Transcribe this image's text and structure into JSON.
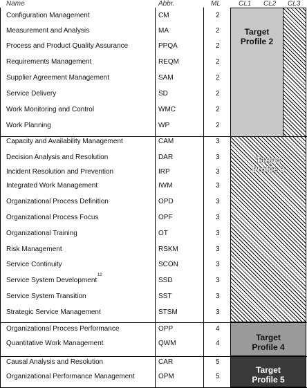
{
  "headers": {
    "name": "Name",
    "abbr": "Abbr.",
    "ml": "ML",
    "cl1": "CL1",
    "cl2": "CL2",
    "cl3": "CL3"
  },
  "rows": [
    {
      "name": "Configuration Management",
      "abbr": "CM",
      "ml": "2"
    },
    {
      "name": "Measurement and Analysis",
      "abbr": "MA",
      "ml": "2"
    },
    {
      "name": "Process and Product Quality Assurance",
      "abbr": "PPQA",
      "ml": "2"
    },
    {
      "name": "Requirements Management",
      "abbr": "REQM",
      "ml": "2"
    },
    {
      "name": "Supplier Agreement Management",
      "abbr": "SAM",
      "ml": "2"
    },
    {
      "name": "Service Delivery",
      "abbr": "SD",
      "ml": "2"
    },
    {
      "name": "Work Monitoring and Control",
      "abbr": "WMC",
      "ml": "2"
    },
    {
      "name": "Work Planning",
      "abbr": "WP",
      "ml": "2"
    },
    {
      "name": "Capacity and Availability Management",
      "abbr": "CAM",
      "ml": "3"
    },
    {
      "name": "Decision Analysis and Resolution",
      "abbr": "DAR",
      "ml": "3"
    },
    {
      "name": "Incident Resolution and Prevention",
      "abbr": "IRP",
      "ml": "3"
    },
    {
      "name": "Integrated Work Management",
      "abbr": "IWM",
      "ml": "3"
    },
    {
      "name": "Organizational Process Definition",
      "abbr": "OPD",
      "ml": "3"
    },
    {
      "name": "Organizational Process Focus",
      "abbr": "OPF",
      "ml": "3"
    },
    {
      "name": "Organizational Training",
      "abbr": "OT",
      "ml": "3"
    },
    {
      "name": "Risk Management",
      "abbr": "RSKM",
      "ml": "3"
    },
    {
      "name": "Service Continuity",
      "abbr": "SCON",
      "ml": "3"
    },
    {
      "name": "Service System Development",
      "sup": "12",
      "abbr": "SSD",
      "ml": "3"
    },
    {
      "name": "Service System Transition",
      "abbr": "SST",
      "ml": "3"
    },
    {
      "name": "Strategic Service Management",
      "abbr": "STSM",
      "ml": "3"
    },
    {
      "name": "Organizational Process Performance",
      "abbr": "OPP",
      "ml": "4"
    },
    {
      "name": "Quantitative Work Management",
      "abbr": "QWM",
      "ml": "4"
    },
    {
      "name": "Causal Analysis and Resolution",
      "abbr": "CAR",
      "ml": "5"
    },
    {
      "name": "Organizational Performance Management",
      "abbr": "OPM",
      "ml": "5"
    }
  ],
  "profiles": {
    "p2": [
      "Target",
      "Profile 2"
    ],
    "p3": [
      "Target",
      "Profile 3"
    ],
    "p4": [
      "Target",
      "Profile 4"
    ],
    "p5": [
      "Target",
      "Profile 5"
    ]
  },
  "colors": {
    "profile2": "#c8c8c8",
    "profile4": "#9a9a9a",
    "profile5": "#3a3a3a"
  }
}
